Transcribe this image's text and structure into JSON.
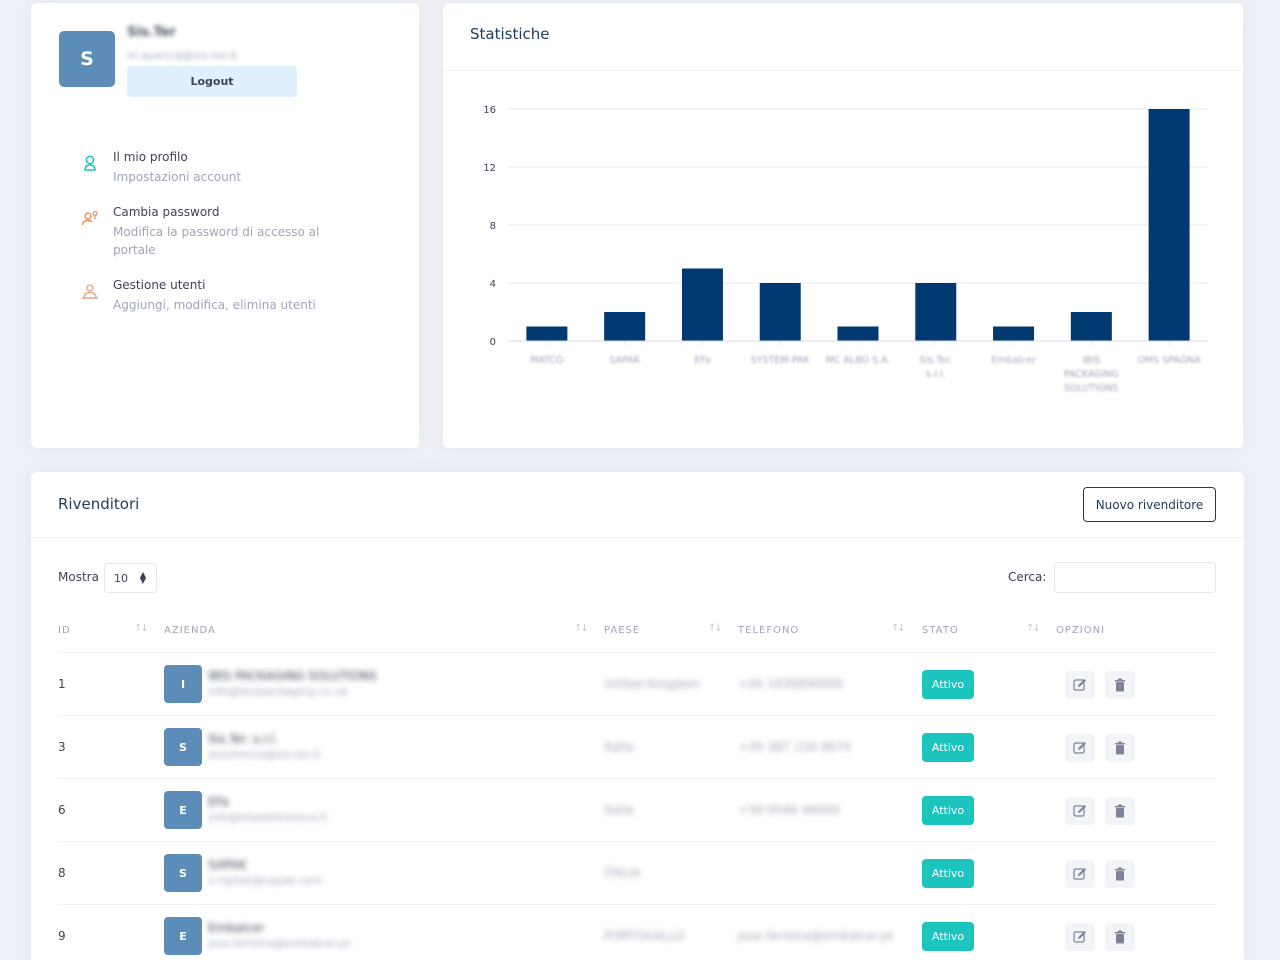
{
  "user": {
    "initial": "S",
    "name": "Sis.Ter",
    "email": "m.quercia@sis-ter.it",
    "logout_label": "Logout"
  },
  "menu": [
    {
      "title": "Il mio profilo",
      "desc": "Impostazioni account",
      "icon": "user-icon"
    },
    {
      "title": "Cambia password",
      "desc": "Modifica la password di accesso al portale",
      "icon": "key-user-icon"
    },
    {
      "title": "Gestione utenti",
      "desc": "Aggiungi, modifica, elimina utenti",
      "icon": "users-icon"
    }
  ],
  "stats": {
    "title": "Statistiche"
  },
  "chart_data": {
    "type": "bar",
    "title": "Statistiche",
    "categories": [
      "MATCO",
      "SAPAK",
      "EFa",
      "SYSTEM-PAK",
      "MC ALBO S.A.",
      "Sis.Ter. s.r.l.",
      "Embalcer",
      "IBIS PACKAGING SOLUTIONS",
      "OMS SPAGNA"
    ],
    "values": [
      1,
      2,
      5,
      4,
      1,
      4,
      1,
      2,
      16
    ],
    "yticks": [
      0,
      4,
      8,
      12,
      16
    ],
    "ylim": [
      0,
      16
    ],
    "grid": true,
    "bar_color": "#003a70"
  },
  "resellers": {
    "title": "Rivenditori",
    "new_button": "Nuovo rivenditore",
    "show_label": "Mostra",
    "page_size": "10",
    "search_label": "Cerca:",
    "columns": [
      "ID",
      "AZIENDA",
      "PAESE",
      "TELEFONO",
      "STATO",
      "OPZIONI"
    ],
    "rows": [
      {
        "id": "1",
        "initial": "I",
        "name": "IBIS PACKAGING SOLUTIONS",
        "email": "info@ibispackaging.co.uk",
        "country": "United Kingdom",
        "phone": "+44 1639890000",
        "status": "Attivo"
      },
      {
        "id": "3",
        "initial": "S",
        "name": "Sis.Ter. s.r.l.",
        "email": "assistenza@sis-ter.it",
        "country": "Italia",
        "phone": "+39 387 234 8674",
        "status": "Attivo"
      },
      {
        "id": "6",
        "initial": "E",
        "name": "EFa",
        "email": "info@efaelettronica.it",
        "country": "Italia",
        "phone": "+39 0546 46000",
        "status": "Attivo"
      },
      {
        "id": "8",
        "initial": "S",
        "name": "SAPAK",
        "email": "s.rigitali@sapak.com",
        "country": "ITALIA",
        "phone": "",
        "status": "Attivo"
      },
      {
        "id": "9",
        "initial": "E",
        "name": "Embalcer",
        "email": "jose.ferreira@embalcer.pt",
        "country": "PORTOGALLO",
        "phone": "jose.ferreira@embalcer.pt",
        "status": "Attivo"
      }
    ]
  },
  "colors": {
    "primary": "#1e3b5a",
    "avatar": "#5b8db8",
    "status_active": "#1bc5bd",
    "bar": "#003a70",
    "background": "#eef0f7"
  }
}
